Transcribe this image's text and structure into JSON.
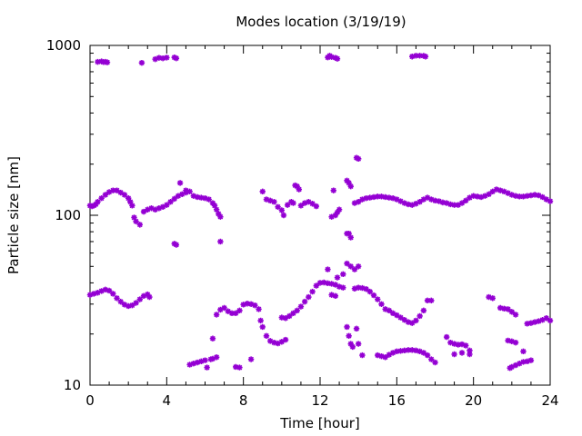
{
  "chart_data": {
    "type": "scatter",
    "title": "Modes location (3/19/19)",
    "xlabel": "Time [hour]",
    "ylabel": "Particle size [nm]",
    "xlim": [
      0,
      24
    ],
    "ylim": [
      10,
      1000
    ],
    "yscale": "log",
    "grid": false,
    "legend": "none",
    "marker_color": "#9400d3",
    "x_ticks": [
      0,
      4,
      8,
      12,
      16,
      20,
      24
    ],
    "y_ticks": [
      10,
      100,
      1000
    ],
    "x_tick_labels": [
      "0",
      "4",
      "8",
      "12",
      "16",
      "20",
      "24"
    ],
    "y_tick_labels": [
      "10",
      "100",
      "1000"
    ],
    "series": [
      {
        "points": [
          [
            0.4,
            800
          ],
          [
            0.6,
            805
          ],
          [
            0.7,
            798
          ],
          [
            0.8,
            800
          ],
          [
            0.9,
            795
          ],
          [
            2.7,
            790
          ],
          [
            3.4,
            830
          ],
          [
            3.6,
            845
          ],
          [
            3.8,
            840
          ],
          [
            4.0,
            848
          ],
          [
            4.4,
            850
          ],
          [
            4.5,
            840
          ],
          [
            12.4,
            850
          ],
          [
            12.5,
            870
          ],
          [
            12.6,
            855
          ],
          [
            12.8,
            845
          ],
          [
            12.9,
            835
          ],
          [
            16.8,
            860
          ],
          [
            17.0,
            870
          ],
          [
            17.2,
            870
          ],
          [
            17.4,
            868
          ],
          [
            17.5,
            860
          ],
          [
            0.0,
            114
          ],
          [
            0.1,
            113
          ],
          [
            0.2,
            114
          ],
          [
            0.3,
            116
          ],
          [
            0.4,
            120
          ],
          [
            0.6,
            126
          ],
          [
            0.8,
            132
          ],
          [
            1.0,
            137
          ],
          [
            1.2,
            140
          ],
          [
            1.4,
            140
          ],
          [
            1.6,
            136
          ],
          [
            1.8,
            132
          ],
          [
            2.0,
            126
          ],
          [
            2.1,
            120
          ],
          [
            2.2,
            114
          ],
          [
            2.3,
            97
          ],
          [
            2.4,
            92
          ],
          [
            2.6,
            88
          ],
          [
            2.8,
            105
          ],
          [
            3.0,
            108
          ],
          [
            3.2,
            110
          ],
          [
            3.4,
            108
          ],
          [
            3.6,
            110
          ],
          [
            3.8,
            112
          ],
          [
            4.0,
            115
          ],
          [
            4.2,
            120
          ],
          [
            4.4,
            125
          ],
          [
            4.6,
            130
          ],
          [
            4.8,
            133
          ],
          [
            5.0,
            136
          ],
          [
            5.2,
            138
          ],
          [
            5.0,
            140
          ],
          [
            4.7,
            155
          ],
          [
            5.4,
            130
          ],
          [
            5.6,
            128
          ],
          [
            5.8,
            127
          ],
          [
            6.0,
            126
          ],
          [
            6.2,
            124
          ],
          [
            6.4,
            118
          ],
          [
            6.5,
            114
          ],
          [
            6.6,
            108
          ],
          [
            6.7,
            102
          ],
          [
            6.8,
            98
          ],
          [
            4.4,
            68
          ],
          [
            4.5,
            67
          ],
          [
            6.8,
            70
          ],
          [
            9.0,
            138
          ],
          [
            9.2,
            124
          ],
          [
            9.4,
            122
          ],
          [
            9.6,
            120
          ],
          [
            9.8,
            112
          ],
          [
            10.0,
            107
          ],
          [
            10.1,
            100
          ],
          [
            10.3,
            115
          ],
          [
            10.5,
            120
          ],
          [
            10.6,
            118
          ],
          [
            10.7,
            150
          ],
          [
            10.8,
            148
          ],
          [
            10.9,
            142
          ],
          [
            11.0,
            114
          ],
          [
            11.2,
            118
          ],
          [
            11.4,
            120
          ],
          [
            11.6,
            117
          ],
          [
            11.8,
            113
          ],
          [
            12.6,
            98
          ],
          [
            12.8,
            100
          ],
          [
            12.9,
            104
          ],
          [
            13.0,
            108
          ],
          [
            12.7,
            140
          ],
          [
            13.4,
            160
          ],
          [
            13.5,
            155
          ],
          [
            13.6,
            148
          ],
          [
            13.5,
            78
          ],
          [
            13.6,
            74
          ],
          [
            13.4,
            78
          ],
          [
            13.9,
            218
          ],
          [
            14.0,
            215
          ],
          [
            13.8,
            118
          ],
          [
            14.0,
            120
          ],
          [
            14.2,
            124
          ],
          [
            14.4,
            126
          ],
          [
            14.6,
            127
          ],
          [
            14.8,
            128
          ],
          [
            15.0,
            129
          ],
          [
            15.2,
            129
          ],
          [
            15.4,
            128
          ],
          [
            15.6,
            127
          ],
          [
            15.8,
            126
          ],
          [
            16.0,
            124
          ],
          [
            16.2,
            121
          ],
          [
            16.4,
            118
          ],
          [
            16.6,
            116
          ],
          [
            16.8,
            115
          ],
          [
            17.0,
            117
          ],
          [
            17.2,
            120
          ],
          [
            17.4,
            124
          ],
          [
            17.6,
            127
          ],
          [
            17.8,
            124
          ],
          [
            18.0,
            122
          ],
          [
            18.2,
            121
          ],
          [
            18.4,
            119
          ],
          [
            18.6,
            118
          ],
          [
            18.8,
            116
          ],
          [
            19.0,
            115
          ],
          [
            19.2,
            115
          ],
          [
            19.4,
            118
          ],
          [
            19.6,
            122
          ],
          [
            19.8,
            127
          ],
          [
            20.0,
            130
          ],
          [
            20.2,
            129
          ],
          [
            20.4,
            128
          ],
          [
            20.6,
            130
          ],
          [
            20.8,
            133
          ],
          [
            21.0,
            138
          ],
          [
            21.2,
            142
          ],
          [
            21.4,
            140
          ],
          [
            21.6,
            138
          ],
          [
            21.8,
            135
          ],
          [
            22.0,
            132
          ],
          [
            22.2,
            130
          ],
          [
            22.4,
            129
          ],
          [
            22.6,
            129
          ],
          [
            22.8,
            130
          ],
          [
            23.0,
            131
          ],
          [
            23.2,
            132
          ],
          [
            23.4,
            131
          ],
          [
            23.6,
            128
          ],
          [
            23.8,
            124
          ],
          [
            24.0,
            121
          ],
          [
            0.0,
            34
          ],
          [
            0.2,
            34.5
          ],
          [
            0.4,
            35
          ],
          [
            0.6,
            35.8
          ],
          [
            0.8,
            36.5
          ],
          [
            1.0,
            36
          ],
          [
            1.2,
            34.5
          ],
          [
            1.4,
            32.5
          ],
          [
            1.6,
            31
          ],
          [
            1.8,
            29.8
          ],
          [
            2.0,
            29.2
          ],
          [
            2.2,
            29.5
          ],
          [
            2.4,
            30.5
          ],
          [
            2.6,
            32
          ],
          [
            2.8,
            33.5
          ],
          [
            3.0,
            34.2
          ],
          [
            3.1,
            33
          ],
          [
            5.2,
            13.2
          ],
          [
            5.4,
            13.4
          ],
          [
            5.6,
            13.6
          ],
          [
            5.8,
            13.8
          ],
          [
            6.0,
            14.0
          ],
          [
            6.1,
            12.7
          ],
          [
            6.3,
            14.2
          ],
          [
            6.4,
            14.3
          ],
          [
            6.6,
            14.6
          ],
          [
            6.4,
            18.8
          ],
          [
            6.6,
            26
          ],
          [
            6.8,
            27.8
          ],
          [
            7.0,
            28.5
          ],
          [
            7.2,
            27.2
          ],
          [
            7.4,
            26.5
          ],
          [
            7.6,
            26.5
          ],
          [
            7.8,
            27.5
          ],
          [
            8.0,
            29.8
          ],
          [
            8.2,
            30.2
          ],
          [
            8.4,
            30
          ],
          [
            8.6,
            29.5
          ],
          [
            8.8,
            28
          ],
          [
            8.4,
            14.2
          ],
          [
            7.6,
            12.8
          ],
          [
            7.8,
            12.7
          ],
          [
            8.9,
            24
          ],
          [
            9.0,
            22
          ],
          [
            9.2,
            19.5
          ],
          [
            9.4,
            18.2
          ],
          [
            9.6,
            17.8
          ],
          [
            9.8,
            17.6
          ],
          [
            10.0,
            18
          ],
          [
            10.2,
            18.5
          ],
          [
            10.0,
            25
          ],
          [
            10.2,
            24.8
          ],
          [
            10.4,
            25.5
          ],
          [
            10.6,
            26.5
          ],
          [
            10.8,
            27.5
          ],
          [
            11.0,
            29
          ],
          [
            11.2,
            31
          ],
          [
            11.4,
            33
          ],
          [
            11.6,
            35.5
          ],
          [
            11.8,
            38.5
          ],
          [
            12.0,
            40
          ],
          [
            12.2,
            40.2
          ],
          [
            12.4,
            39.8
          ],
          [
            12.6,
            39.5
          ],
          [
            12.8,
            39
          ],
          [
            13.0,
            38
          ],
          [
            13.2,
            37.5
          ],
          [
            12.4,
            48
          ],
          [
            12.6,
            34
          ],
          [
            12.8,
            33.5
          ],
          [
            12.9,
            43
          ],
          [
            13.2,
            45
          ],
          [
            13.4,
            52
          ],
          [
            13.6,
            50
          ],
          [
            13.8,
            48
          ],
          [
            14.0,
            50
          ],
          [
            13.8,
            37
          ],
          [
            14.0,
            37.5
          ],
          [
            14.2,
            37.3
          ],
          [
            14.4,
            36.8
          ],
          [
            14.6,
            35.5
          ],
          [
            14.8,
            33.8
          ],
          [
            15.0,
            32
          ],
          [
            15.2,
            30
          ],
          [
            15.4,
            28
          ],
          [
            15.6,
            27.5
          ],
          [
            15.8,
            26.5
          ],
          [
            16.0,
            25.8
          ],
          [
            16.2,
            25
          ],
          [
            16.4,
            24.2
          ],
          [
            16.6,
            23.5
          ],
          [
            16.8,
            23.2
          ],
          [
            17.0,
            24
          ],
          [
            17.2,
            25.5
          ],
          [
            17.4,
            27.5
          ],
          [
            17.6,
            31.5
          ],
          [
            17.8,
            31.5
          ],
          [
            13.4,
            22
          ],
          [
            13.5,
            19.5
          ],
          [
            13.6,
            17.5
          ],
          [
            13.7,
            16.8
          ],
          [
            13.9,
            21.5
          ],
          [
            14.0,
            17.5
          ],
          [
            14.2,
            15
          ],
          [
            15.0,
            15
          ],
          [
            15.2,
            14.8
          ],
          [
            15.4,
            14.6
          ],
          [
            15.6,
            15.1
          ],
          [
            15.8,
            15.5
          ],
          [
            16.0,
            15.8
          ],
          [
            16.2,
            15.9
          ],
          [
            16.4,
            16.0
          ],
          [
            16.6,
            16.1
          ],
          [
            16.8,
            16.1
          ],
          [
            17.0,
            16.0
          ],
          [
            17.2,
            15.8
          ],
          [
            17.4,
            15.5
          ],
          [
            17.6,
            15.0
          ],
          [
            17.8,
            14.2
          ],
          [
            18.0,
            13.6
          ],
          [
            18.6,
            19.2
          ],
          [
            18.8,
            17.8
          ],
          [
            19.0,
            17.5
          ],
          [
            19.2,
            17.3
          ],
          [
            19.4,
            17.4
          ],
          [
            19.6,
            17.1
          ],
          [
            19.8,
            16.0
          ],
          [
            19.0,
            15.2
          ],
          [
            19.4,
            15.5
          ],
          [
            19.8,
            15.2
          ],
          [
            20.8,
            33
          ],
          [
            21.0,
            32.5
          ],
          [
            21.4,
            28.5
          ],
          [
            21.6,
            28.2
          ],
          [
            21.8,
            28
          ],
          [
            22.0,
            27
          ],
          [
            22.2,
            26
          ],
          [
            21.8,
            18.3
          ],
          [
            22.0,
            18.1
          ],
          [
            22.2,
            17.8
          ],
          [
            21.9,
            12.6
          ],
          [
            22.0,
            12.8
          ],
          [
            22.2,
            13.1
          ],
          [
            22.4,
            13.4
          ],
          [
            22.6,
            13.7
          ],
          [
            22.8,
            13.8
          ],
          [
            23.0,
            14.0
          ],
          [
            22.6,
            15.8
          ],
          [
            22.8,
            23
          ],
          [
            23.0,
            23.2
          ],
          [
            23.2,
            23.5
          ],
          [
            23.4,
            23.8
          ],
          [
            23.6,
            24.2
          ],
          [
            23.8,
            24.8
          ],
          [
            24.0,
            24
          ]
        ]
      }
    ]
  }
}
